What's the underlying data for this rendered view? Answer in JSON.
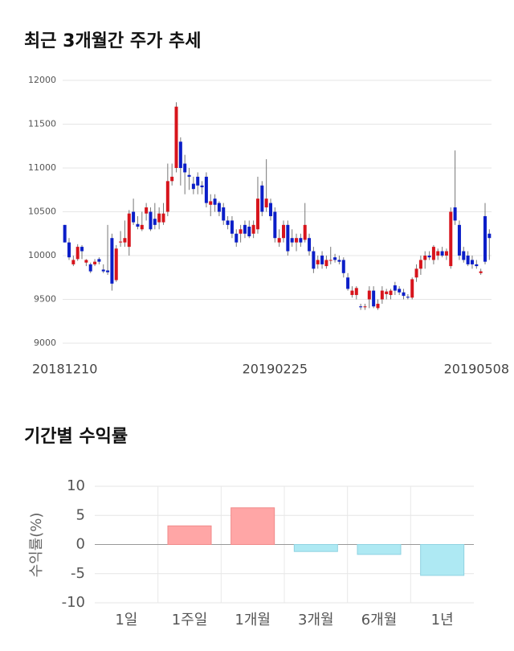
{
  "chart_data": [
    {
      "type": "candlestick",
      "title": "최근 3개월간 주가 추세",
      "categories": [
        "20181210",
        null,
        null,
        null,
        null,
        null,
        null,
        null,
        null,
        null,
        null,
        null,
        null,
        null,
        null,
        null,
        null,
        null,
        null,
        null,
        null,
        null,
        null,
        null,
        null,
        null,
        null,
        null,
        null,
        null,
        null,
        null,
        null,
        null,
        null,
        null,
        null,
        null,
        null,
        null,
        null,
        null,
        null,
        null,
        null,
        null,
        null,
        null,
        null,
        "20190225",
        null,
        null,
        null,
        null,
        null,
        null,
        null,
        null,
        null,
        null,
        null,
        null,
        null,
        null,
        null,
        null,
        null,
        null,
        null,
        null,
        null,
        null,
        null,
        null,
        null,
        null,
        null,
        null,
        null,
        null,
        null,
        null,
        null,
        null,
        null,
        null,
        null,
        null,
        null,
        null,
        null,
        null,
        null,
        null,
        null,
        null,
        "20190508",
        null,
        null,
        null
      ],
      "open": [
        10350,
        10150,
        9900,
        9960,
        10100,
        9920,
        9900,
        9900,
        9960,
        9840,
        9830,
        10200,
        9720,
        10150,
        10150,
        10100,
        10500,
        10360,
        10300,
        10480,
        10500,
        10420,
        10380,
        10380,
        10500,
        10850,
        11000,
        11300,
        11050,
        10920,
        10820,
        10900,
        10800,
        10900,
        10580,
        10650,
        10600,
        10550,
        10400,
        10400,
        10250,
        10250,
        10350,
        10330,
        10250,
        10300,
        10800,
        10550,
        10600,
        10500,
        10150,
        10200,
        10350,
        10200,
        10150,
        10200,
        10180,
        10200,
        10050,
        9900,
        10000,
        9880,
        9950,
        9980,
        9950,
        9950,
        9750,
        9550,
        9550,
        9420,
        9410,
        9500,
        9600,
        9400,
        9500,
        9560,
        9550,
        9660,
        9620,
        9580,
        9530,
        9520,
        9750,
        9850,
        9950,
        10000,
        9950,
        10000,
        10050,
        10000,
        9880,
        10550,
        10350,
        10050,
        10000,
        9950,
        9900,
        9800,
        10450,
        10250
      ],
      "high": [
        10350,
        10200,
        10000,
        10130,
        10120,
        9960,
        9920,
        9960,
        9980,
        9900,
        10350,
        10250,
        10120,
        10280,
        10400,
        10520,
        10650,
        10450,
        10500,
        10600,
        10550,
        10600,
        10550,
        10600,
        11050,
        11050,
        11750,
        11350,
        11150,
        11000,
        10900,
        10950,
        10850,
        10950,
        10700,
        10700,
        10620,
        10600,
        10450,
        10450,
        10300,
        10350,
        10400,
        10400,
        10400,
        10900,
        10850,
        11100,
        10650,
        10550,
        10300,
        10400,
        10400,
        10300,
        10250,
        10250,
        10600,
        10250,
        10100,
        10000,
        10050,
        10000,
        10100,
        10020,
        10000,
        9980,
        9800,
        9650,
        9650,
        9450,
        9450,
        9650,
        9650,
        9500,
        9650,
        9620,
        9620,
        9700,
        9650,
        9620,
        9560,
        9750,
        9900,
        10000,
        10050,
        10050,
        10120,
        10080,
        10100,
        10080,
        10550,
        11200,
        10400,
        10100,
        10050,
        10000,
        9950,
        9850,
        10600,
        10300
      ],
      "low": [
        10150,
        9950,
        9880,
        9940,
        9960,
        9880,
        9800,
        9880,
        9900,
        9800,
        9780,
        9600,
        9700,
        10100,
        10100,
        10000,
        10350,
        10300,
        10280,
        10400,
        10280,
        10300,
        10300,
        10350,
        10450,
        10800,
        10950,
        10800,
        10700,
        10750,
        10700,
        10700,
        10700,
        10550,
        10450,
        10500,
        10450,
        10350,
        10300,
        10200,
        10100,
        10150,
        10200,
        10200,
        10200,
        10250,
        10450,
        10500,
        10400,
        10150,
        10100,
        10150,
        10000,
        10100,
        10050,
        10100,
        10150,
        10000,
        9800,
        9850,
        9850,
        9850,
        9900,
        9920,
        9900,
        9750,
        9600,
        9520,
        9500,
        9380,
        9380,
        9400,
        9400,
        9380,
        9450,
        9500,
        9500,
        9550,
        9550,
        9500,
        9500,
        9500,
        9700,
        9780,
        9850,
        9950,
        9900,
        9950,
        9980,
        9950,
        9850,
        10350,
        9950,
        9920,
        9880,
        9850,
        9850,
        9780,
        9900,
        9950
      ],
      "close": [
        10150,
        9980,
        9950,
        10100,
        10050,
        9950,
        9820,
        9930,
        9930,
        9820,
        9810,
        9680,
        10080,
        10160,
        10200,
        10480,
        10380,
        10330,
        10350,
        10550,
        10300,
        10350,
        10480,
        10480,
        10850,
        10900,
        11700,
        11000,
        10950,
        10900,
        10760,
        10800,
        10780,
        10600,
        10620,
        10580,
        10500,
        10400,
        10350,
        10250,
        10150,
        10300,
        10250,
        10220,
        10350,
        10650,
        10500,
        10650,
        10450,
        10200,
        10200,
        10350,
        10050,
        10150,
        10200,
        10150,
        10350,
        10050,
        9850,
        9950,
        9900,
        9950,
        9950,
        9950,
        9930,
        9800,
        9620,
        9600,
        9630,
        9410,
        9420,
        9600,
        9420,
        9450,
        9600,
        9590,
        9600,
        9600,
        9580,
        9540,
        9520,
        9730,
        9850,
        9950,
        10000,
        9980,
        10100,
        10050,
        10000,
        10050,
        10500,
        10400,
        10000,
        9950,
        9900,
        9900,
        9880,
        9820,
        9930,
        10200
      ],
      "up_color": "#d7141c",
      "down_color": "#0b1ec8",
      "ylim": [
        9000,
        12000
      ],
      "yticks": [
        9000,
        9500,
        10000,
        10500,
        11000,
        11500,
        12000
      ],
      "grid": true
    },
    {
      "type": "bar",
      "title": "기간별 수익률",
      "ylabel": "수익률(%)",
      "categories": [
        "1일",
        "1주일",
        "1개월",
        "3개월",
        "6개월",
        "1년"
      ],
      "values": [
        0,
        3.2,
        6.3,
        -1.2,
        -1.7,
        -5.3
      ],
      "positive_color": "#ffa6a6",
      "negative_color": "#aee9f3",
      "ylim": [
        -10,
        10
      ],
      "yticks": [
        -10,
        -5,
        0,
        5,
        10
      ],
      "grid": true
    }
  ]
}
